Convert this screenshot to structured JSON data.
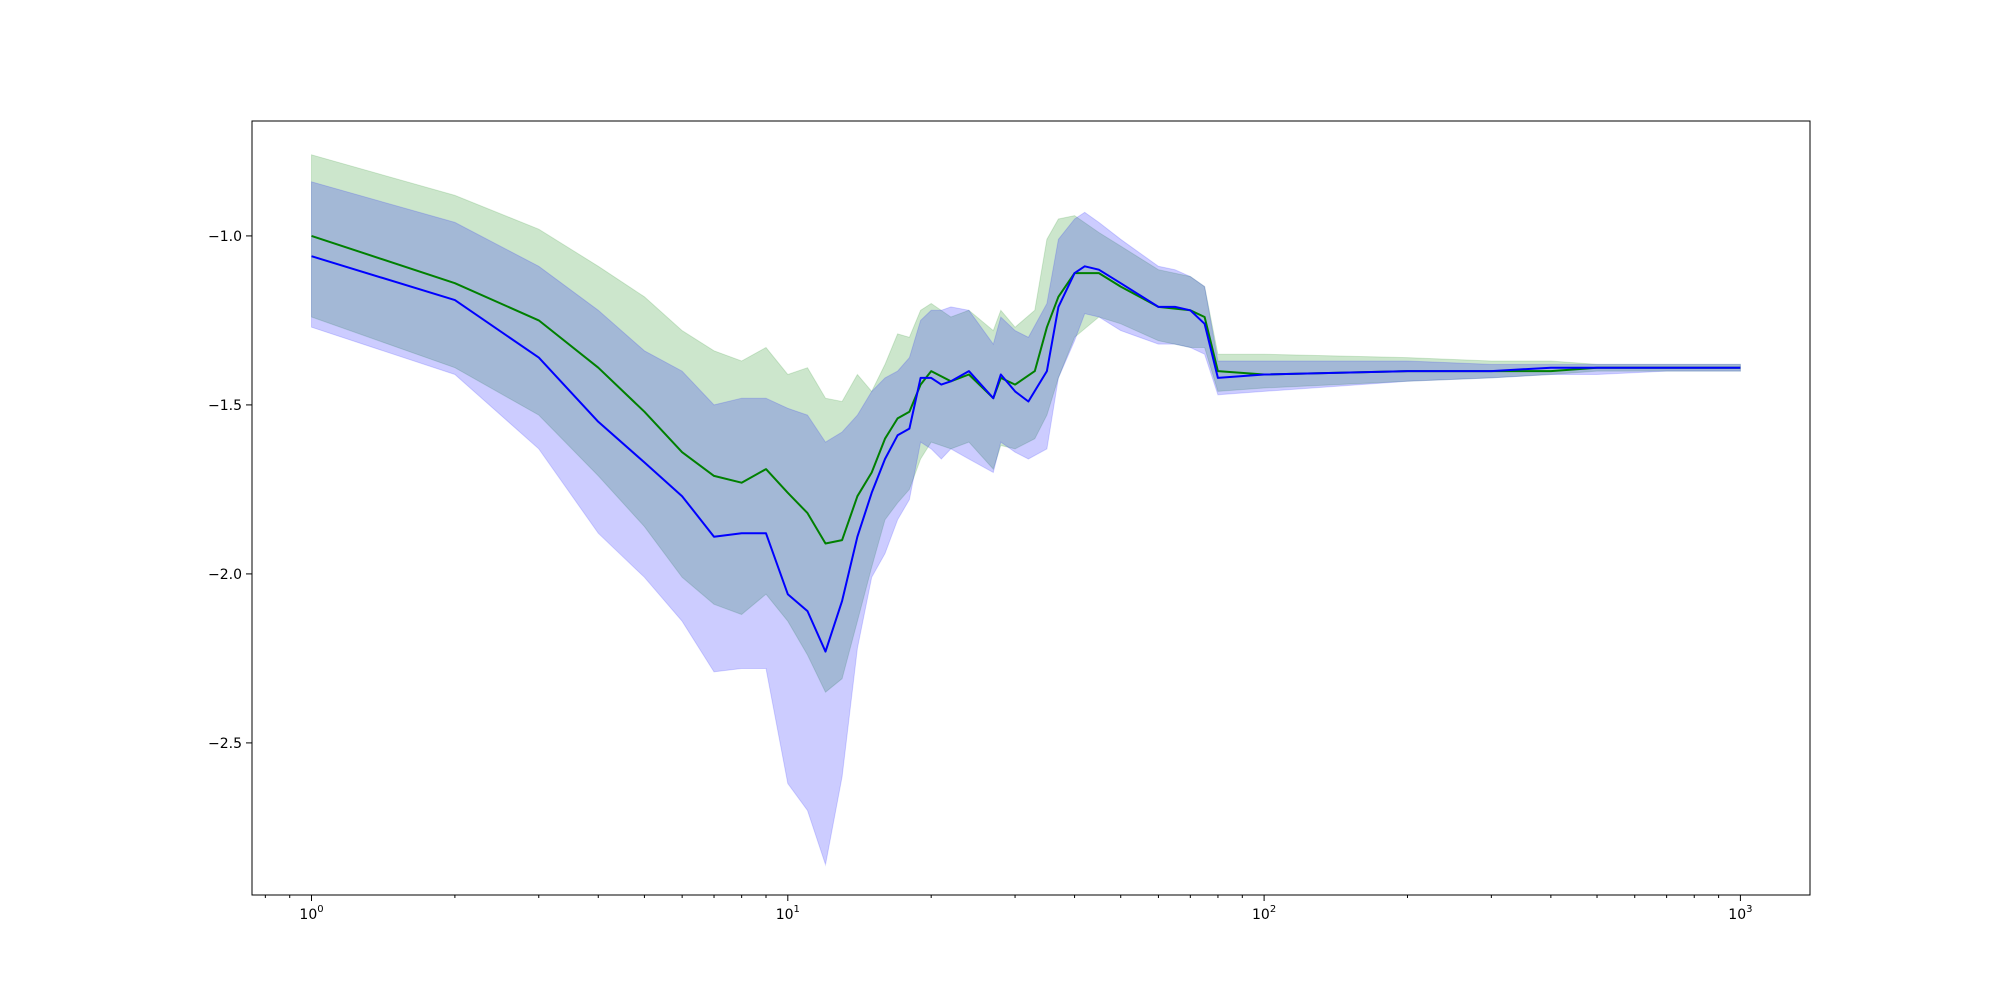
{
  "chart_data": {
    "type": "line",
    "title": "",
    "xlabel": "",
    "ylabel": "",
    "xscale": "log",
    "xlim": [
      0.75,
      1400
    ],
    "ylim": [
      -2.95,
      -0.66
    ],
    "grid": false,
    "legend": "none",
    "x_ticks": [
      {
        "value": 1,
        "base": "10",
        "exp": "0"
      },
      {
        "value": 10,
        "base": "10",
        "exp": "1"
      },
      {
        "value": 100,
        "base": "10",
        "exp": "2"
      },
      {
        "value": 1000,
        "base": "10",
        "exp": "3"
      }
    ],
    "y_ticks": [
      {
        "value": -1.0,
        "label": "−1.0"
      },
      {
        "value": -1.5,
        "label": "−1.5"
      },
      {
        "value": -2.0,
        "label": "−2.0"
      },
      {
        "value": -2.5,
        "label": "−2.5"
      }
    ],
    "series": [
      {
        "color": "#008000",
        "band_color": "#008000",
        "band_opacity": 0.2,
        "x": [
          1,
          2,
          3,
          4,
          5,
          6,
          7,
          8,
          9,
          10,
          11,
          12,
          13,
          14,
          15,
          16,
          17,
          18,
          19,
          20,
          22,
          24,
          27,
          28,
          30,
          33,
          35,
          37,
          40,
          45,
          50,
          60,
          70,
          75,
          80,
          100,
          200,
          300,
          400,
          500,
          700,
          1000
        ],
        "y": [
          -1.0,
          -1.14,
          -1.25,
          -1.39,
          -1.52,
          -1.64,
          -1.71,
          -1.73,
          -1.69,
          -1.76,
          -1.82,
          -1.91,
          -1.9,
          -1.77,
          -1.7,
          -1.6,
          -1.54,
          -1.52,
          -1.44,
          -1.4,
          -1.43,
          -1.41,
          -1.48,
          -1.42,
          -1.44,
          -1.4,
          -1.27,
          -1.18,
          -1.11,
          -1.11,
          -1.15,
          -1.21,
          -1.22,
          -1.24,
          -1.4,
          -1.41,
          -1.4,
          -1.4,
          -1.4,
          -1.39,
          -1.39,
          -1.39
        ],
        "upper": [
          -0.76,
          -0.88,
          -0.98,
          -1.09,
          -1.18,
          -1.28,
          -1.34,
          -1.37,
          -1.33,
          -1.41,
          -1.39,
          -1.48,
          -1.49,
          -1.41,
          -1.46,
          -1.38,
          -1.29,
          -1.3,
          -1.22,
          -1.2,
          -1.24,
          -1.22,
          -1.28,
          -1.22,
          -1.27,
          -1.22,
          -1.01,
          -0.95,
          -0.94,
          -0.99,
          -1.03,
          -1.1,
          -1.12,
          -1.15,
          -1.35,
          -1.35,
          -1.36,
          -1.37,
          -1.37,
          -1.38,
          -1.38,
          -1.38
        ],
        "lower": [
          -1.24,
          -1.39,
          -1.53,
          -1.71,
          -1.86,
          -2.01,
          -2.09,
          -2.12,
          -2.06,
          -2.14,
          -2.24,
          -2.35,
          -2.31,
          -2.14,
          -1.98,
          -1.84,
          -1.79,
          -1.75,
          -1.66,
          -1.61,
          -1.63,
          -1.61,
          -1.69,
          -1.62,
          -1.63,
          -1.6,
          -1.53,
          -1.42,
          -1.3,
          -1.24,
          -1.26,
          -1.31,
          -1.33,
          -1.33,
          -1.46,
          -1.45,
          -1.43,
          -1.42,
          -1.41,
          -1.4,
          -1.4,
          -1.4
        ]
      },
      {
        "color": "#0000ff",
        "band_color": "#0000ff",
        "band_opacity": 0.2,
        "x": [
          1,
          2,
          3,
          4,
          5,
          6,
          7,
          8,
          9,
          10,
          11,
          12,
          13,
          14,
          15,
          16,
          17,
          18,
          19,
          20,
          21,
          22,
          24,
          27,
          28,
          30,
          32,
          35,
          37,
          40,
          42,
          45,
          50,
          60,
          65,
          70,
          75,
          80,
          100,
          200,
          300,
          400,
          500,
          700,
          1000
        ],
        "y": [
          -1.06,
          -1.19,
          -1.36,
          -1.55,
          -1.67,
          -1.77,
          -1.89,
          -1.88,
          -1.88,
          -2.06,
          -2.11,
          -2.23,
          -2.08,
          -1.89,
          -1.76,
          -1.66,
          -1.59,
          -1.57,
          -1.42,
          -1.42,
          -1.44,
          -1.43,
          -1.4,
          -1.48,
          -1.41,
          -1.46,
          -1.49,
          -1.4,
          -1.21,
          -1.11,
          -1.09,
          -1.1,
          -1.14,
          -1.21,
          -1.21,
          -1.22,
          -1.26,
          -1.42,
          -1.41,
          -1.4,
          -1.4,
          -1.39,
          -1.39,
          -1.39,
          -1.39
        ],
        "upper": [
          -0.84,
          -0.96,
          -1.09,
          -1.22,
          -1.34,
          -1.4,
          -1.5,
          -1.48,
          -1.48,
          -1.51,
          -1.53,
          -1.61,
          -1.58,
          -1.53,
          -1.46,
          -1.42,
          -1.4,
          -1.36,
          -1.25,
          -1.22,
          -1.22,
          -1.21,
          -1.22,
          -1.32,
          -1.24,
          -1.28,
          -1.3,
          -1.2,
          -1.01,
          -0.95,
          -0.93,
          -0.96,
          -1.01,
          -1.09,
          -1.1,
          -1.12,
          -1.15,
          -1.37,
          -1.37,
          -1.37,
          -1.38,
          -1.38,
          -1.38,
          -1.38,
          -1.38
        ],
        "lower": [
          -1.27,
          -1.41,
          -1.63,
          -1.88,
          -2.01,
          -2.14,
          -2.29,
          -2.28,
          -2.28,
          -2.62,
          -2.7,
          -2.86,
          -2.6,
          -2.22,
          -2.01,
          -1.94,
          -1.84,
          -1.78,
          -1.61,
          -1.63,
          -1.66,
          -1.63,
          -1.66,
          -1.7,
          -1.61,
          -1.64,
          -1.66,
          -1.63,
          -1.42,
          -1.31,
          -1.23,
          -1.24,
          -1.28,
          -1.32,
          -1.32,
          -1.33,
          -1.35,
          -1.47,
          -1.46,
          -1.43,
          -1.42,
          -1.41,
          -1.41,
          -1.4,
          -1.4
        ]
      }
    ]
  }
}
